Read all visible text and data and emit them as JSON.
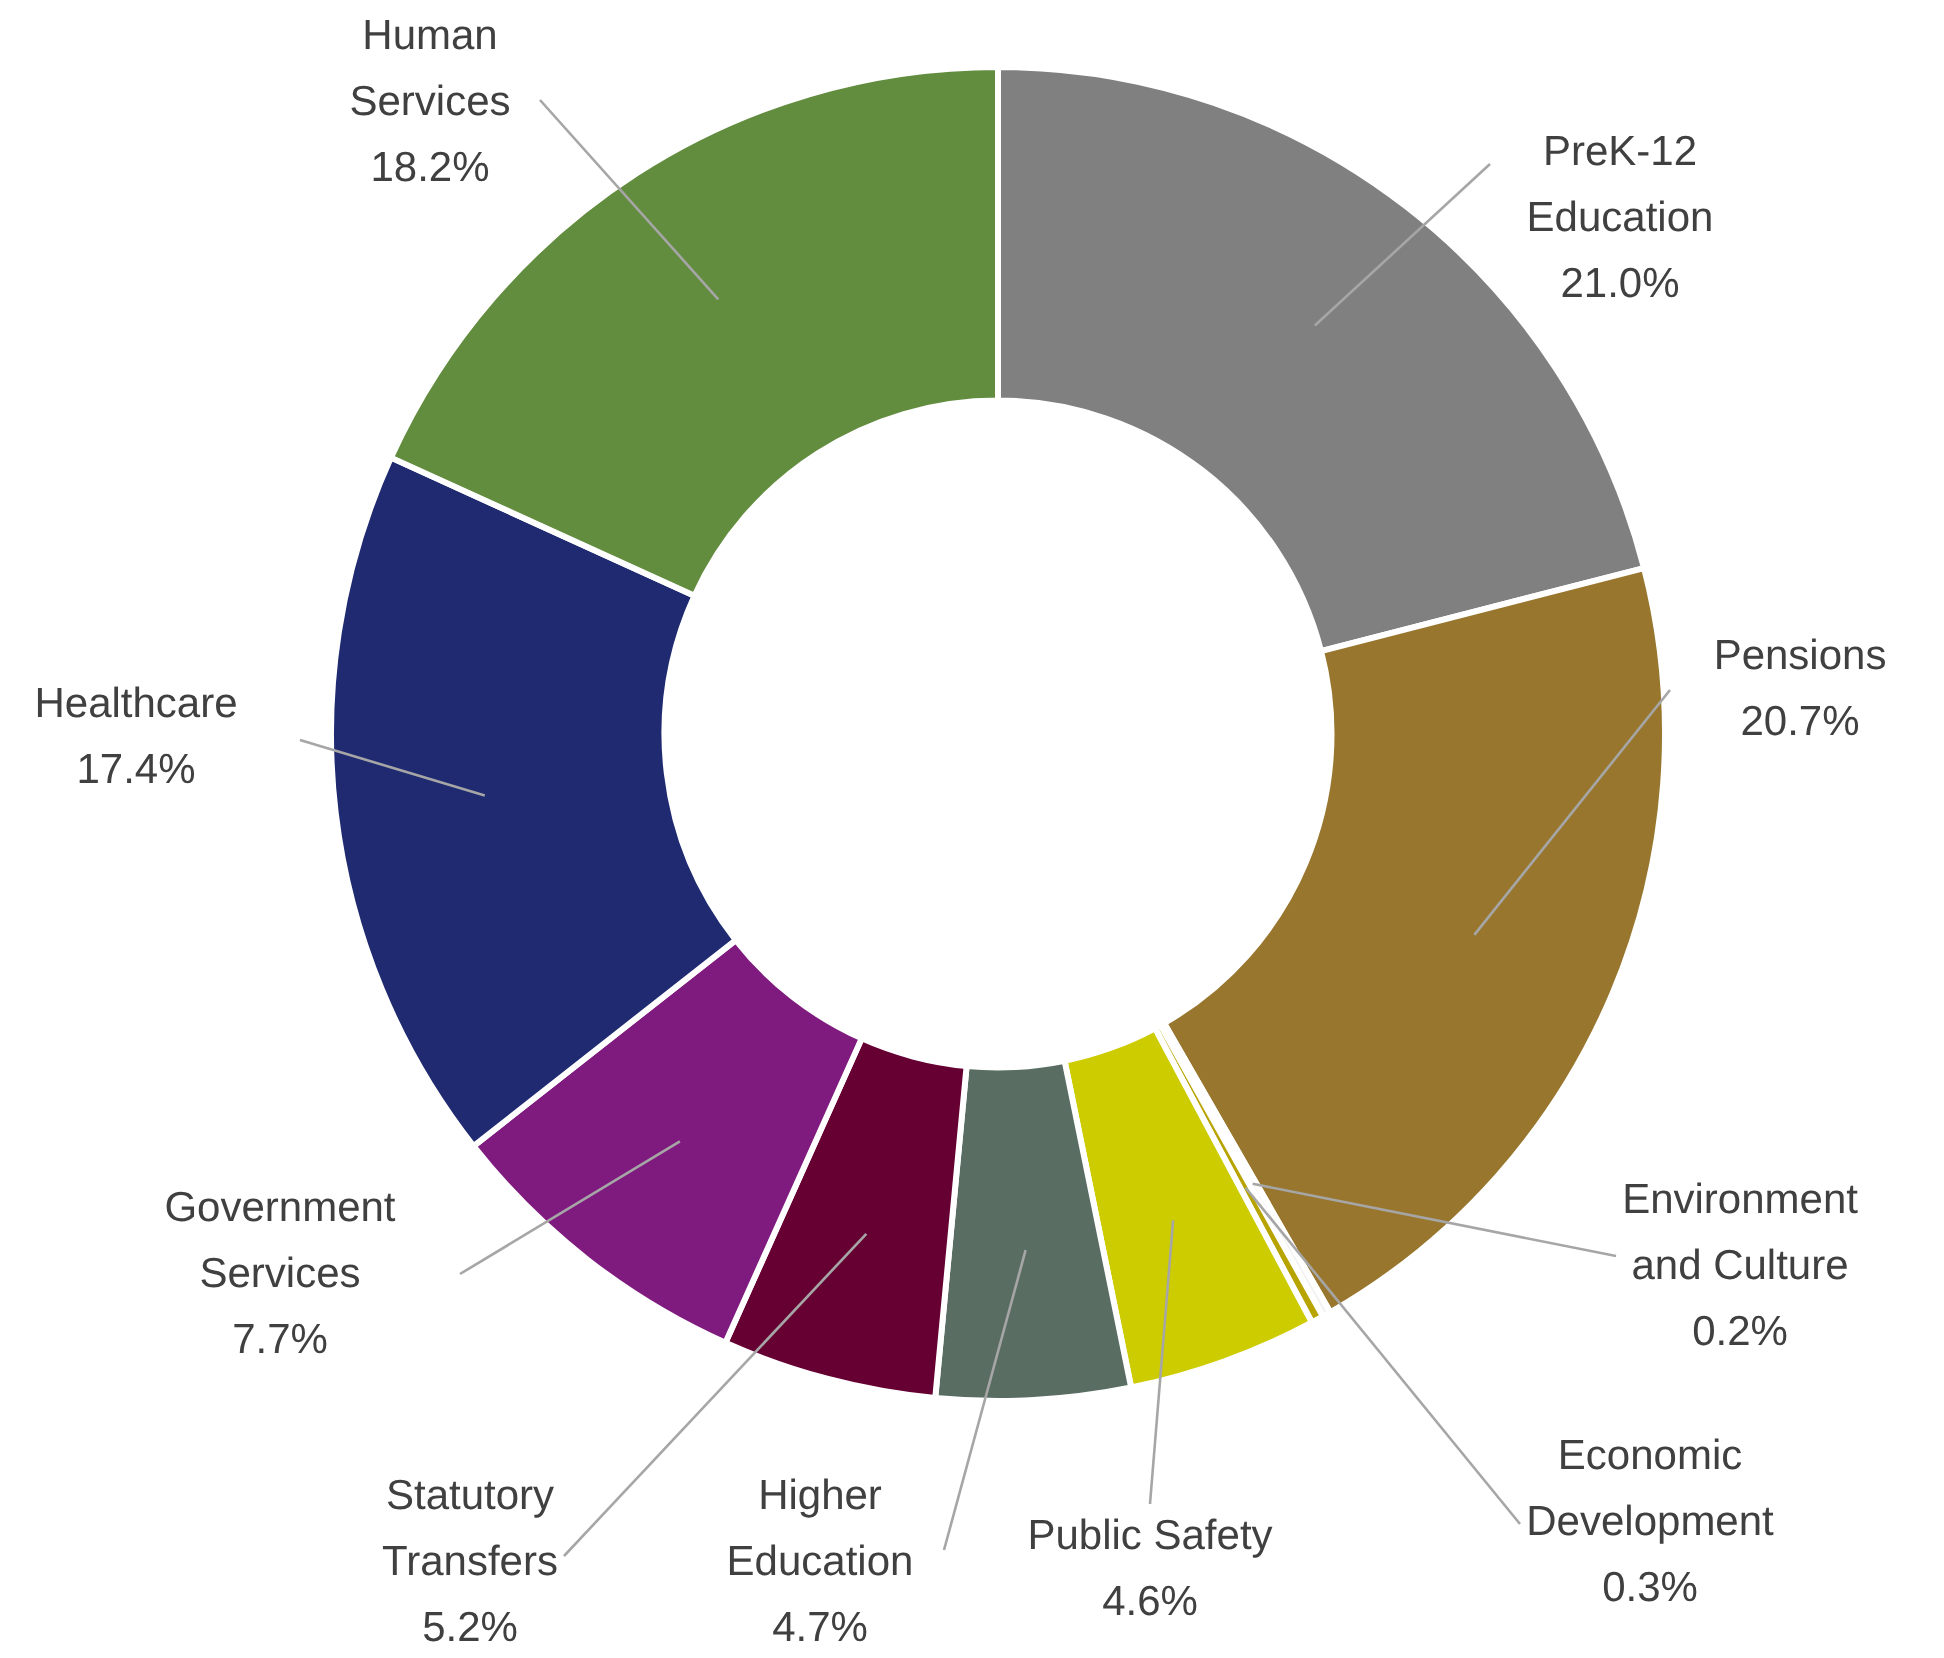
{
  "chart_data": {
    "type": "donut",
    "categories": [
      "PreK-12 Education",
      "Pensions",
      "Environment and Culture",
      "Economic Development",
      "Public Safety",
      "Higher Education",
      "Statutory Transfers",
      "Government Services",
      "Healthcare",
      "Human Services"
    ],
    "values": [
      21.0,
      20.7,
      0.2,
      0.3,
      4.6,
      4.7,
      5.2,
      7.7,
      17.4,
      18.2
    ],
    "value_labels": [
      "21.0%",
      "20.7%",
      "0.2%",
      "0.3%",
      "4.6%",
      "4.7%",
      "5.2%",
      "7.7%",
      "17.4%",
      "18.2%"
    ],
    "colors": [
      "#808080",
      "#98762e",
      "#f2f2f2",
      "#b8a400",
      "#cccc00",
      "#596d63",
      "#660033",
      "#7f1a7f",
      "#1f2a70",
      "#628c3e"
    ],
    "legend": false
  }
}
